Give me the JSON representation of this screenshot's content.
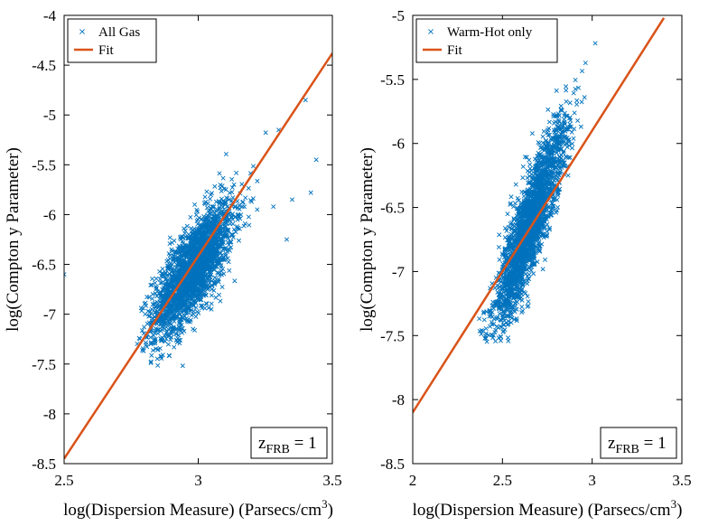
{
  "chart_data": [
    {
      "type": "scatter",
      "xlabel": "log(Dispersion Measure) (Parsecs/cm",
      "xlabel_sup": "3",
      "xlabel_close": ")",
      "ylabel": "log(Compton y Parameter)",
      "xlim": [
        2.5,
        3.5
      ],
      "ylim": [
        -8.5,
        -4
      ],
      "xticks": [
        2.5,
        3,
        3.5
      ],
      "xtick_labels": [
        "2.5",
        "3",
        "3.5"
      ],
      "yticks": [
        -8.5,
        -8,
        -7.5,
        -7,
        -6.5,
        -6,
        -5.5,
        -5,
        -4.5,
        -4
      ],
      "ytick_labels": [
        "-8.5",
        "-8",
        "-7.5",
        "-7",
        "-6.5",
        "-6",
        "-5.5",
        "-5",
        "-4.5",
        "-4"
      ],
      "legend_position": "top-left",
      "legend": [
        {
          "label": "All Gas",
          "marker": "x",
          "color": "#0072BD"
        },
        {
          "label": "Fit",
          "marker": "line",
          "color": "#D95319"
        }
      ],
      "series": [
        {
          "name": "All Gas",
          "kind": "scatter",
          "color": "#0072BD",
          "cloud": {
            "center": [
              2.98,
              -6.55
            ],
            "x_sd": 0.075,
            "y_sd": 0.33,
            "correlation": 0.75,
            "count": 2400,
            "x_min": 2.76,
            "y_min": -7.57
          },
          "outliers": [
            [
              3.44,
              -5.45
            ],
            [
              3.4,
              -4.85
            ],
            [
              3.42,
              -5.78
            ],
            [
              3.35,
              -5.85
            ],
            [
              3.33,
              -6.25
            ],
            [
              3.28,
              -5.92
            ],
            [
              2.5,
              -6.6
            ],
            [
              3.22,
              -5.95
            ],
            [
              3.3,
              -5.15
            ]
          ]
        },
        {
          "name": "Fit",
          "kind": "line",
          "color": "#D95319",
          "x": [
            2.5,
            3.5
          ],
          "y": [
            -8.45,
            -4.38
          ]
        }
      ],
      "annotation": {
        "base": "z",
        "sub": "FRB",
        "tail": " = 1",
        "position": "bottom-right"
      }
    },
    {
      "type": "scatter",
      "xlabel": "log(Dispersion Measure) (Parsecs/cm",
      "xlabel_sup": "3",
      "xlabel_close": ")",
      "ylabel": "log(Compton y Parameter)",
      "xlim": [
        2,
        3.5
      ],
      "ylim": [
        -8.5,
        -5
      ],
      "xticks": [
        2,
        2.5,
        3,
        3.5
      ],
      "xtick_labels": [
        "2",
        "2.5",
        "3",
        "3.5"
      ],
      "yticks": [
        -8.5,
        -8,
        -7.5,
        -7,
        -6.5,
        -6,
        -5.5,
        -5
      ],
      "ytick_labels": [
        "-8.5",
        "-8",
        "-7.5",
        "-7",
        "-6.5",
        "-6",
        "-5.5",
        "-5"
      ],
      "legend_position": "top-left",
      "legend": [
        {
          "label": "Warm-Hot only",
          "marker": "x",
          "color": "#0072BD"
        },
        {
          "label": "Fit",
          "marker": "line",
          "color": "#D95319"
        }
      ],
      "series": [
        {
          "name": "Warm-Hot only",
          "kind": "scatter",
          "color": "#0072BD",
          "cloud": {
            "center": [
              2.65,
              -6.65
            ],
            "x_sd": 0.1,
            "y_sd": 0.4,
            "correlation": 0.88,
            "count": 2400,
            "x_min": 2.28,
            "y_min": -7.55
          },
          "outliers": []
        },
        {
          "name": "Fit",
          "kind": "line",
          "color": "#D95319",
          "x": [
            2,
            3.4
          ],
          "y": [
            -8.1,
            -5.02
          ]
        }
      ],
      "annotation": {
        "base": "z",
        "sub": "FRB",
        "tail": " = 1",
        "position": "bottom-right"
      }
    }
  ]
}
